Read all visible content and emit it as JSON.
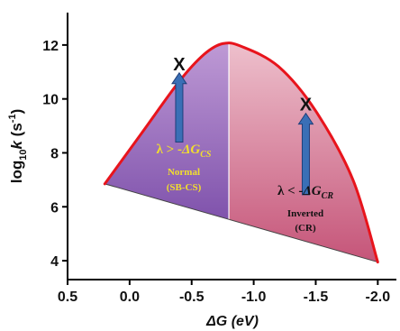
{
  "chart_data": {
    "type": "line",
    "xlabel": {
      "italic": "ΔG",
      "rest": " (eV)"
    },
    "ylabel": {
      "base": "log",
      "sub": "10",
      "var": "k",
      "unit_pre": " (s",
      "unit_sup": "-1",
      "unit_post": ")"
    },
    "x_reversed": true,
    "xlim": [
      0.5,
      -2.15
    ],
    "ylim": [
      3.3,
      13.2
    ],
    "x_ticks": [
      0.5,
      0.0,
      -0.5,
      -1.0,
      -1.5,
      -2.0
    ],
    "x_tick_labels": [
      "0.5",
      "0.0",
      "-0.5",
      "-1.0",
      "-1.5",
      "-2.0"
    ],
    "y_ticks": [
      4,
      6,
      8,
      10,
      12
    ],
    "y_tick_labels": [
      "4",
      "6",
      "8",
      "10",
      "12"
    ],
    "series": [
      {
        "color": "#e8141c",
        "points": [
          [
            0.2,
            6.85
          ],
          [
            -0.1,
            8.75
          ],
          [
            -0.4,
            10.65
          ],
          [
            -0.6,
            11.65
          ],
          [
            -0.75,
            12.05
          ],
          [
            -0.9,
            11.95
          ],
          [
            -1.2,
            11.2
          ],
          [
            -1.5,
            9.55
          ],
          [
            -1.8,
            7.0
          ],
          [
            -2.0,
            3.95
          ]
        ]
      }
    ],
    "baseline": {
      "from": [
        0.2,
        6.85
      ],
      "to": [
        -2.0,
        3.95
      ],
      "color": "#444444"
    },
    "divider_x": -0.8,
    "markers": [
      {
        "symbol": "X",
        "x": -0.4,
        "y": 11.3,
        "arrow_from_y": 8.4
      },
      {
        "symbol": "X",
        "x": -1.42,
        "y": 9.8,
        "arrow_from_y": 6.45
      }
    ],
    "regions": [
      {
        "id": "normal",
        "fill_top": "#c9a6dc",
        "fill_bottom": "#6a3a9e",
        "label_color": "#f2df2c",
        "eq": {
          "lhs": "λ > -",
          "var": "ΔG",
          "sub": "CS"
        },
        "name": "Normal",
        "detail": "(SB-CS)"
      },
      {
        "id": "inverted",
        "fill_top": "#f3cfd8",
        "fill_bottom": "#c24c72",
        "label_color": "#111111",
        "eq": {
          "lhs": "λ < -",
          "var": "ΔG",
          "sub": "CR"
        },
        "name": "Inverted",
        "detail": "(CR)"
      }
    ],
    "colors": {
      "arrow_fill": "#3a6fb6",
      "arrow_stroke": "#1f3f7a",
      "marker": "#111111",
      "axis": "#000000"
    }
  }
}
